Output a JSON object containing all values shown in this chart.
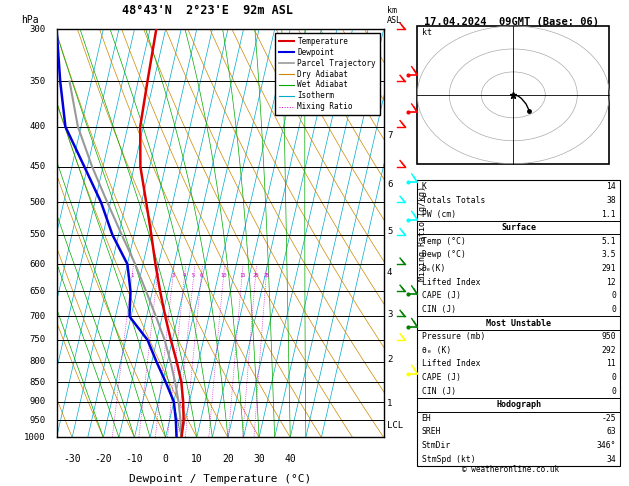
{
  "title_left": "48°43'N  2°23'E  92m ASL",
  "title_right": "17.04.2024  09GMT (Base: 06)",
  "xlabel": "Dewpoint / Temperature (°C)",
  "temp_profile_p": [
    1000,
    950,
    900,
    850,
    800,
    750,
    700,
    650,
    600,
    550,
    500,
    450,
    400,
    350,
    300
  ],
  "temp_profile_T": [
    5.1,
    4.5,
    3.0,
    1.0,
    -2.0,
    -5.5,
    -9.0,
    -12.5,
    -16.0,
    -19.5,
    -23.5,
    -28.0,
    -31.0,
    -32.0,
    -33.0
  ],
  "dewp_profile_p": [
    1000,
    950,
    900,
    850,
    800,
    750,
    700,
    650,
    600,
    550,
    500,
    450,
    400,
    350,
    300
  ],
  "dewp_profile_T": [
    3.5,
    2.0,
    0.0,
    -4.0,
    -8.5,
    -13.0,
    -20.5,
    -22.0,
    -25.0,
    -32.0,
    -38.0,
    -46.0,
    -55.0,
    -60.0,
    -65.0
  ],
  "parcel_profile_p": [
    1000,
    950,
    900,
    850,
    800,
    750,
    700,
    650,
    600,
    550,
    500,
    450,
    400,
    350
  ],
  "parcel_profile_T": [
    5.1,
    3.5,
    1.5,
    -1.0,
    -4.0,
    -7.5,
    -12.0,
    -17.0,
    -22.5,
    -29.0,
    -36.0,
    -43.5,
    -51.0,
    -57.0
  ],
  "xlim": [
    -35,
    40
  ],
  "pmin": 300,
  "pmax": 1000,
  "skew": 30.0,
  "temp_color": "#dd0000",
  "dewp_color": "#0000dd",
  "parcel_color": "#999999",
  "dry_adiabat_color": "#cc8800",
  "wet_adiabat_color": "#00aa00",
  "isotherm_color": "#00aacc",
  "mixing_ratio_color": "#cc00cc",
  "stats_K": 14,
  "stats_TT": 38,
  "stats_PW": 1.1,
  "stats_surf_temp": 5.1,
  "stats_surf_dewp": 3.5,
  "stats_surf_theta_e": 291,
  "stats_surf_li": 12,
  "stats_surf_cape": 0,
  "stats_surf_cin": 0,
  "stats_mu_press": 950,
  "stats_mu_theta_e": 292,
  "stats_mu_li": 11,
  "stats_mu_cape": 0,
  "stats_mu_cin": 0,
  "stats_eh": -25,
  "stats_sreh": 63,
  "stats_stmdir": "346°",
  "stats_stmspd": 34,
  "km_labels": [
    7,
    6,
    5,
    4,
    3,
    2,
    1,
    "LCL"
  ],
  "km_pressures": [
    410,
    475,
    545,
    615,
    695,
    795,
    905,
    965
  ],
  "mixing_ratios": [
    1,
    2,
    3,
    4,
    5,
    6,
    10,
    15,
    20,
    25
  ],
  "pressure_labels": [
    300,
    350,
    400,
    450,
    500,
    550,
    600,
    650,
    700,
    750,
    800,
    850,
    900,
    950,
    1000
  ]
}
